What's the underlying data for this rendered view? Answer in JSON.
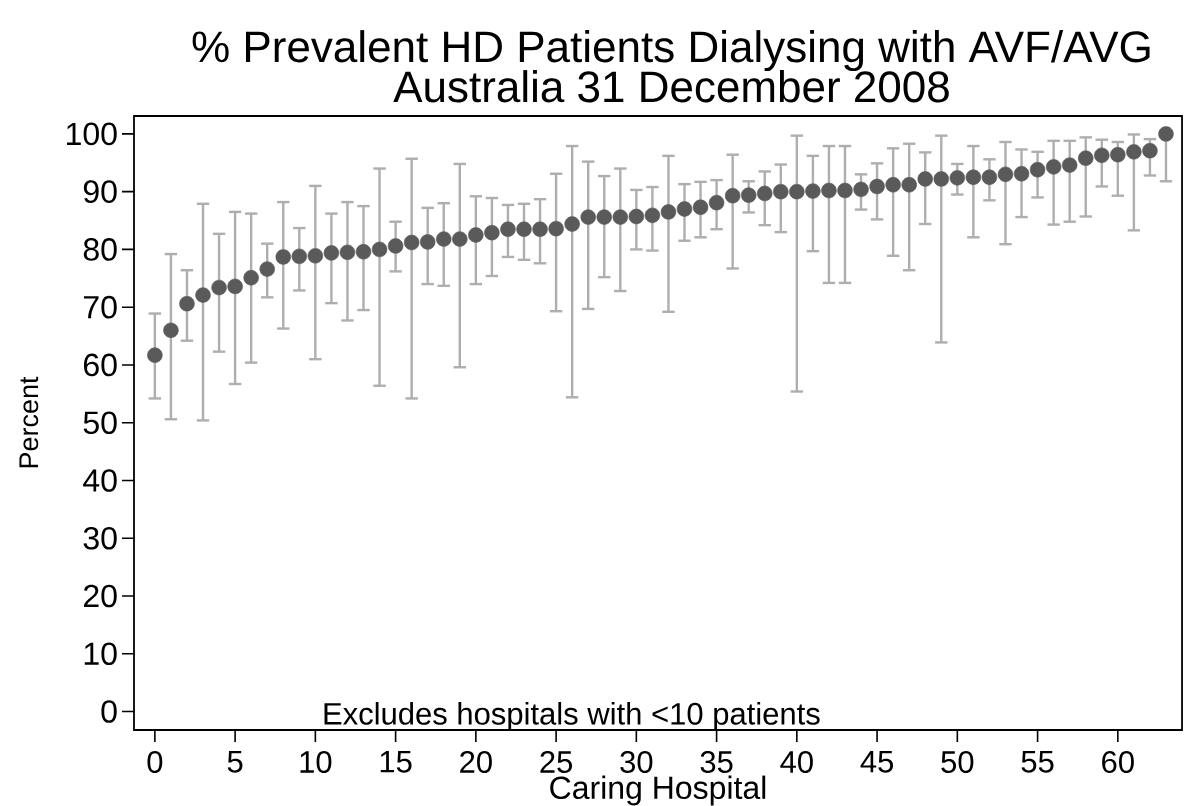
{
  "chart_data": {
    "type": "scatter",
    "title": "% Prevalent HD Patients Dialysing with AVF/AVG",
    "subtitle": "Australia 31 December 2008",
    "xlabel": "Caring Hospital",
    "ylabel": "Percent",
    "annotations": [
      "Excludes hospitals with <10 patients"
    ],
    "x": [
      0,
      1,
      2,
      3,
      4,
      5,
      6,
      7,
      8,
      9,
      10,
      11,
      12,
      13,
      14,
      15,
      16,
      17,
      18,
      19,
      20,
      21,
      22,
      23,
      24,
      25,
      26,
      27,
      28,
      29,
      30,
      31,
      32,
      33,
      34,
      35,
      36,
      37,
      38,
      39,
      40,
      41,
      42,
      43,
      44,
      45,
      46,
      47,
      48,
      49,
      50,
      51,
      52,
      53,
      54,
      55,
      56,
      57,
      58,
      59,
      60,
      61,
      62,
      63
    ],
    "values": [
      61.7,
      66.0,
      70.6,
      72.1,
      73.4,
      73.6,
      75.1,
      76.6,
      78.7,
      78.8,
      78.9,
      79.4,
      79.5,
      79.6,
      80.0,
      80.6,
      81.2,
      81.3,
      81.8,
      81.8,
      82.5,
      82.9,
      83.5,
      83.5,
      83.5,
      83.6,
      84.4,
      85.6,
      85.6,
      85.6,
      85.7,
      85.9,
      86.5,
      87.0,
      87.3,
      88.1,
      89.3,
      89.4,
      89.7,
      90.0,
      90.0,
      90.1,
      90.2,
      90.2,
      90.4,
      90.9,
      91.2,
      91.2,
      92.2,
      92.2,
      92.4,
      92.5,
      92.5,
      93.0,
      93.1,
      93.8,
      94.3,
      94.6,
      95.8,
      96.3,
      96.4,
      96.9,
      97.1,
      100
    ],
    "errors": [
      [
        54.2,
        68.9
      ],
      [
        50.6,
        79.2
      ],
      [
        64.2,
        76.4
      ],
      [
        50.4,
        87.9
      ],
      [
        62.3,
        82.7
      ],
      [
        56.7,
        86.5
      ],
      [
        60.4,
        86.2
      ],
      [
        71.7,
        81.0
      ],
      [
        66.3,
        88.2
      ],
      [
        72.9,
        83.7
      ],
      [
        61.0,
        91.0
      ],
      [
        70.7,
        86.2
      ],
      [
        67.7,
        88.2
      ],
      [
        69.5,
        87.5
      ],
      [
        56.4,
        94.0
      ],
      [
        76.2,
        84.8
      ],
      [
        54.2,
        95.7
      ],
      [
        74.0,
        87.2
      ],
      [
        73.7,
        88.0
      ],
      [
        59.6,
        94.8
      ],
      [
        74.0,
        89.2
      ],
      [
        75.4,
        88.9
      ],
      [
        78.7,
        87.7
      ],
      [
        78.2,
        87.9
      ],
      [
        77.6,
        88.7
      ],
      [
        69.3,
        93.1
      ],
      [
        54.4,
        97.9
      ],
      [
        69.7,
        95.2
      ],
      [
        75.2,
        92.7
      ],
      [
        72.8,
        94.0
      ],
      [
        80.0,
        90.3
      ],
      [
        79.8,
        90.8
      ],
      [
        69.2,
        96.2
      ],
      [
        81.5,
        91.3
      ],
      [
        82.1,
        91.7
      ],
      [
        83.5,
        92.0
      ],
      [
        76.7,
        96.4
      ],
      [
        86.4,
        91.8
      ],
      [
        84.2,
        93.5
      ],
      [
        83.0,
        94.7
      ],
      [
        55.4,
        99.7
      ],
      [
        79.7,
        96.2
      ],
      [
        74.2,
        97.9
      ],
      [
        74.2,
        97.9
      ],
      [
        86.9,
        93.0
      ],
      [
        85.2,
        94.9
      ],
      [
        78.9,
        97.5
      ],
      [
        76.4,
        98.3
      ],
      [
        84.4,
        96.8
      ],
      [
        63.9,
        99.7
      ],
      [
        89.5,
        94.8
      ],
      [
        82.1,
        97.9
      ],
      [
        88.5,
        95.6
      ],
      [
        80.9,
        98.6
      ],
      [
        85.6,
        97.3
      ],
      [
        89.0,
        96.9
      ],
      [
        84.3,
        98.8
      ],
      [
        84.8,
        98.8
      ],
      [
        85.7,
        99.4
      ],
      [
        90.9,
        99.0
      ],
      [
        89.3,
        98.6
      ],
      [
        83.3,
        99.9
      ],
      [
        92.8,
        99.1
      ],
      [
        91.8,
        100
      ]
    ],
    "color": "#5a5a5a",
    "marker": "circle",
    "xlim": [
      -1.3,
      64
    ],
    "ylim": [
      -3.2,
      103.1
    ],
    "xticks": [
      0,
      5,
      10,
      15,
      20,
      25,
      30,
      35,
      40,
      45,
      50,
      55,
      60
    ],
    "yticks": [
      0,
      10,
      20,
      30,
      40,
      50,
      60,
      70,
      80,
      90,
      100
    ]
  }
}
